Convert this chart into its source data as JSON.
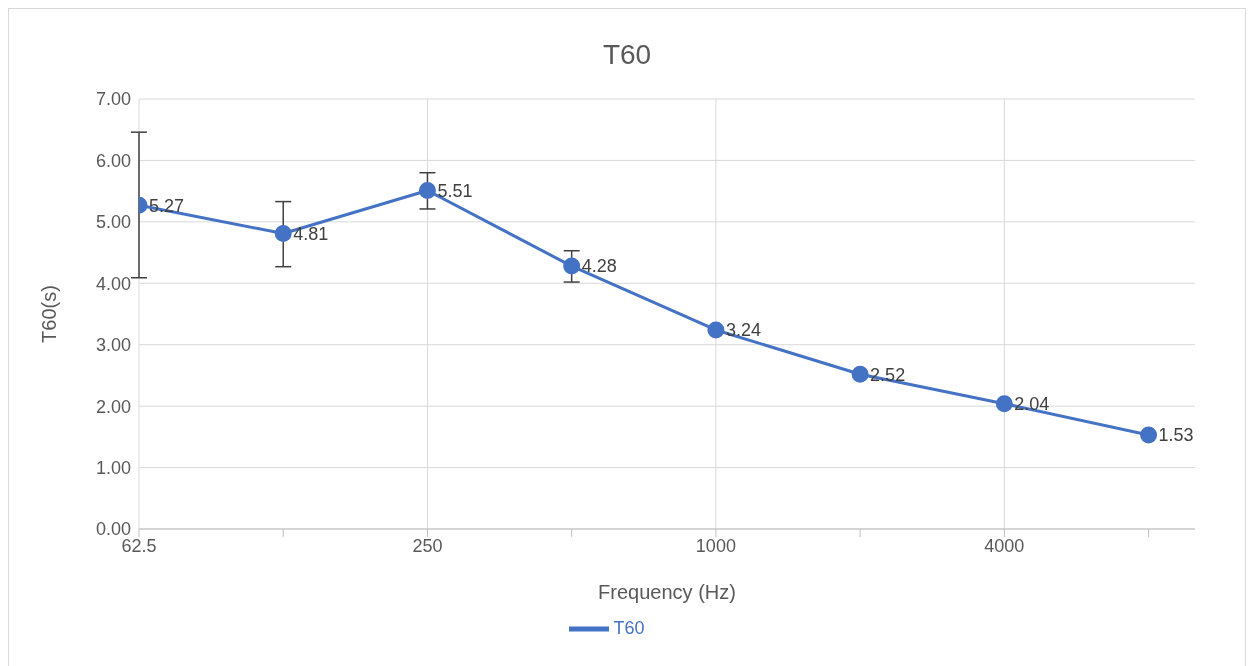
{
  "chart_data": {
    "type": "line",
    "title": "T60",
    "xlabel": "Frequency (Hz)",
    "ylabel": "T60(s)",
    "x": [
      62.5,
      125,
      250,
      500,
      1000,
      2000,
      4000,
      8000
    ],
    "series": [
      {
        "name": "T60",
        "color": "#4472c4",
        "values": [
          5.27,
          4.81,
          5.51,
          4.28,
          3.24,
          2.52,
          2.04,
          1.53
        ],
        "errors": [
          [
            4.09,
            6.46
          ],
          [
            4.27,
            5.33
          ],
          [
            5.21,
            5.8
          ],
          [
            4.02,
            4.53
          ],
          null,
          null,
          null,
          null
        ]
      }
    ],
    "log": "x",
    "xlim": [
      62.5,
      10000
    ],
    "xticks": [
      62.5,
      {
        "value": 125,
        "label": null
      },
      250,
      {
        "value": 500,
        "label": null
      },
      1000,
      {
        "value": 2000,
        "label": null
      },
      4000,
      {
        "value": 8000,
        "label": null
      }
    ],
    "ylim": [
      0,
      7
    ],
    "yticks": [
      {
        "value": 0,
        "label": "0.00"
      },
      {
        "value": 1,
        "label": "1.00"
      },
      {
        "value": 2,
        "label": "2.00"
      },
      {
        "value": 3,
        "label": "3.00"
      },
      {
        "value": 4,
        "label": "4.00"
      },
      {
        "value": 5,
        "label": "5.00"
      },
      {
        "value": 6,
        "label": "6.00"
      },
      {
        "value": 7,
        "label": "7.00"
      }
    ],
    "grid": true,
    "legend": "bottom",
    "marker": "circle",
    "line_style": "solid",
    "data_labels": true
  }
}
